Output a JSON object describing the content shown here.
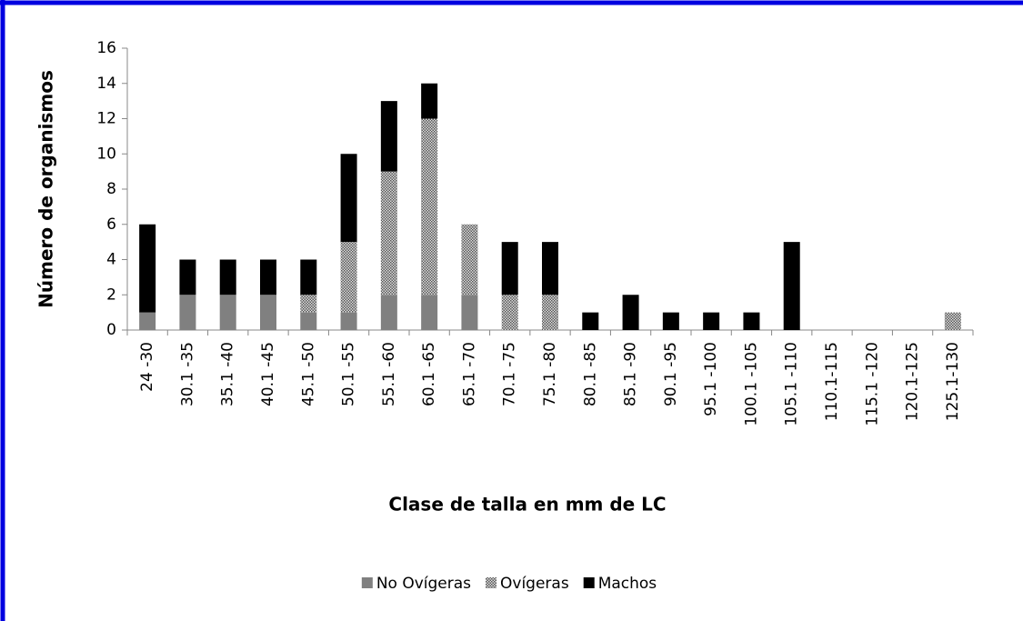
{
  "chart_data": {
    "type": "stacked_bar",
    "x_label": "Clase de talla en mm de LC",
    "y_label": "Número de organismos",
    "categories": [
      "24 -30",
      "30.1 -35",
      "35.1 -40",
      "40.1 -45",
      "45.1 -50",
      "50.1 -55",
      "55.1 -60",
      "60.1 -65",
      "65.1 -70",
      "70.1 -75",
      "75.1 -80",
      "80.1 -85",
      "85.1 -90",
      "90.1 -95",
      "95.1 -100",
      "100.1 -105",
      "105.1 -110",
      "110.1-115",
      "115.1 -120",
      "120.1-125",
      "125.1-130"
    ],
    "series": [
      {
        "name": "No Ovígeras",
        "color": "#808080",
        "values": [
          1,
          2,
          2,
          2,
          1,
          1,
          2,
          2,
          2,
          0,
          0,
          0,
          0,
          0,
          0,
          0,
          0,
          0,
          0,
          0,
          0
        ]
      },
      {
        "name": "Ovígeras",
        "color": "#808080",
        "pattern": "checker",
        "values": [
          0,
          0,
          0,
          0,
          1,
          4,
          7,
          10,
          4,
          2,
          2,
          0,
          0,
          0,
          0,
          0,
          0,
          0,
          0,
          0,
          1
        ]
      },
      {
        "name": "Machos",
        "color": "#000000",
        "values": [
          5,
          2,
          2,
          2,
          2,
          5,
          4,
          2,
          0,
          3,
          3,
          1,
          2,
          1,
          1,
          1,
          5,
          0,
          0,
          0,
          0
        ]
      }
    ],
    "ylim": [
      0,
      16
    ],
    "yticks": [
      0,
      2,
      4,
      6,
      8,
      10,
      12,
      14,
      16
    ],
    "grid": false,
    "legend": "bottom"
  }
}
